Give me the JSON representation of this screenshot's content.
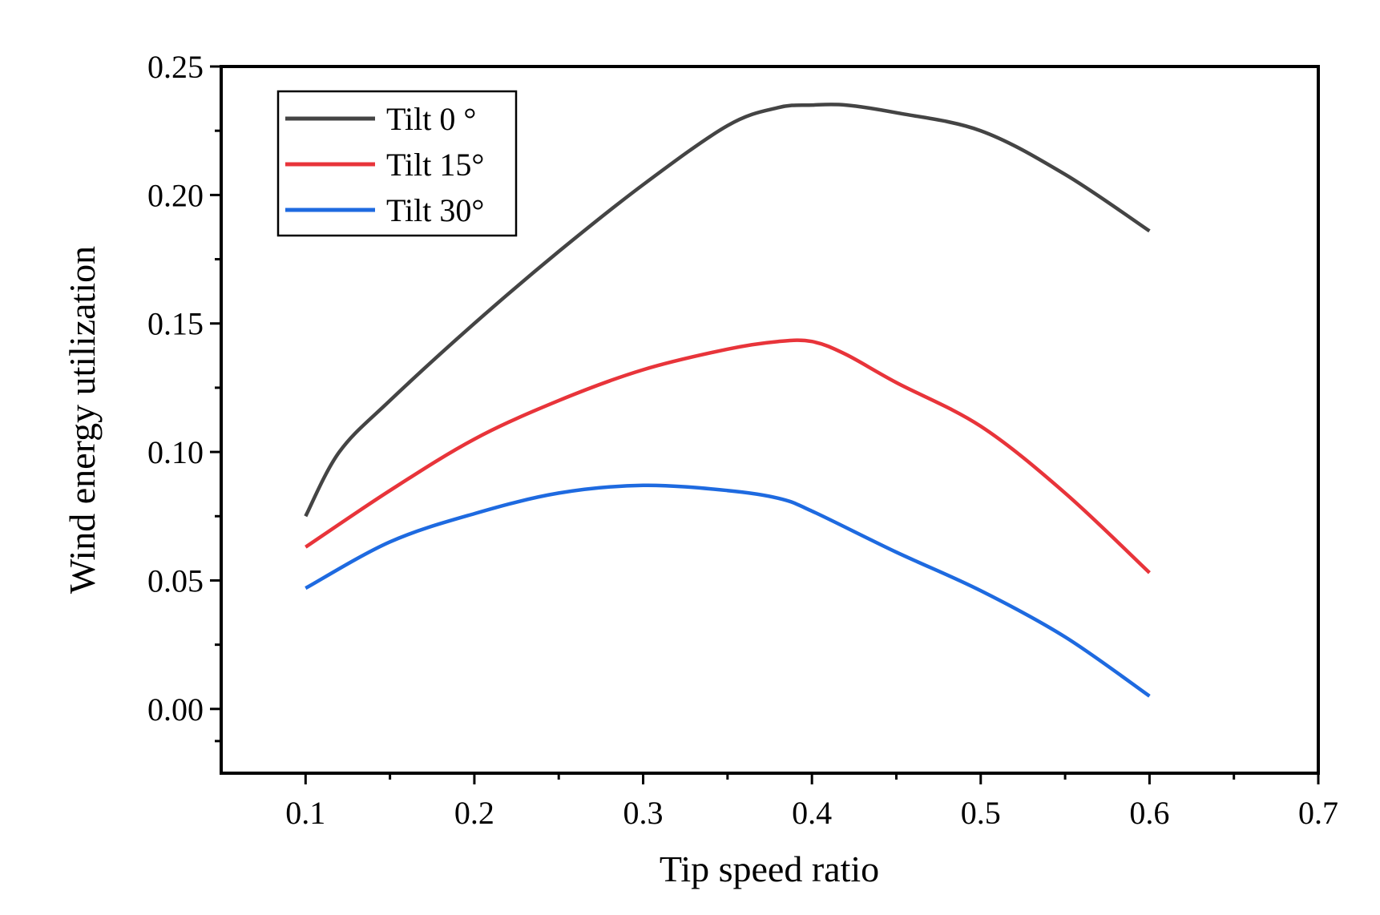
{
  "chart_data": {
    "type": "line",
    "title": "",
    "xlabel": "Tip speed ratio",
    "ylabel": "Wind energy utilization",
    "xlim": [
      0.05,
      0.7
    ],
    "ylim": [
      -0.025,
      0.25
    ],
    "x_ticks": [
      0.1,
      0.2,
      0.3,
      0.4,
      0.5,
      0.6,
      0.7
    ],
    "x_tick_labels": [
      "0.1",
      "0.2",
      "0.3",
      "0.4",
      "0.5",
      "0.6",
      "0.7"
    ],
    "y_ticks": [
      0.0,
      0.05,
      0.1,
      0.15,
      0.2,
      0.25
    ],
    "y_tick_labels": [
      "0.00",
      "0.05",
      "0.10",
      "0.15",
      "0.20",
      "0.25"
    ],
    "grid": false,
    "legend_position": "top-left",
    "series": [
      {
        "name": "Tilt 0 °",
        "color": "#444444",
        "x": [
          0.1,
          0.12,
          0.15,
          0.2,
          0.25,
          0.3,
          0.35,
          0.38,
          0.4,
          0.42,
          0.45,
          0.5,
          0.55,
          0.6
        ],
        "values": [
          0.075,
          0.1,
          0.12,
          0.15,
          0.178,
          0.204,
          0.227,
          0.234,
          0.235,
          0.235,
          0.232,
          0.225,
          0.208,
          0.186
        ]
      },
      {
        "name": "Tilt 15°",
        "color": "#e8343a",
        "x": [
          0.1,
          0.15,
          0.2,
          0.25,
          0.3,
          0.35,
          0.38,
          0.4,
          0.42,
          0.45,
          0.5,
          0.55,
          0.6
        ],
        "values": [
          0.063,
          0.085,
          0.105,
          0.12,
          0.132,
          0.14,
          0.143,
          0.143,
          0.138,
          0.127,
          0.11,
          0.084,
          0.053
        ]
      },
      {
        "name": "Tilt 30°",
        "color": "#1e6ae0",
        "x": [
          0.1,
          0.15,
          0.2,
          0.25,
          0.3,
          0.35,
          0.38,
          0.4,
          0.45,
          0.5,
          0.55,
          0.6
        ],
        "values": [
          0.047,
          0.065,
          0.076,
          0.084,
          0.087,
          0.085,
          0.082,
          0.077,
          0.061,
          0.046,
          0.028,
          0.005
        ]
      }
    ]
  }
}
